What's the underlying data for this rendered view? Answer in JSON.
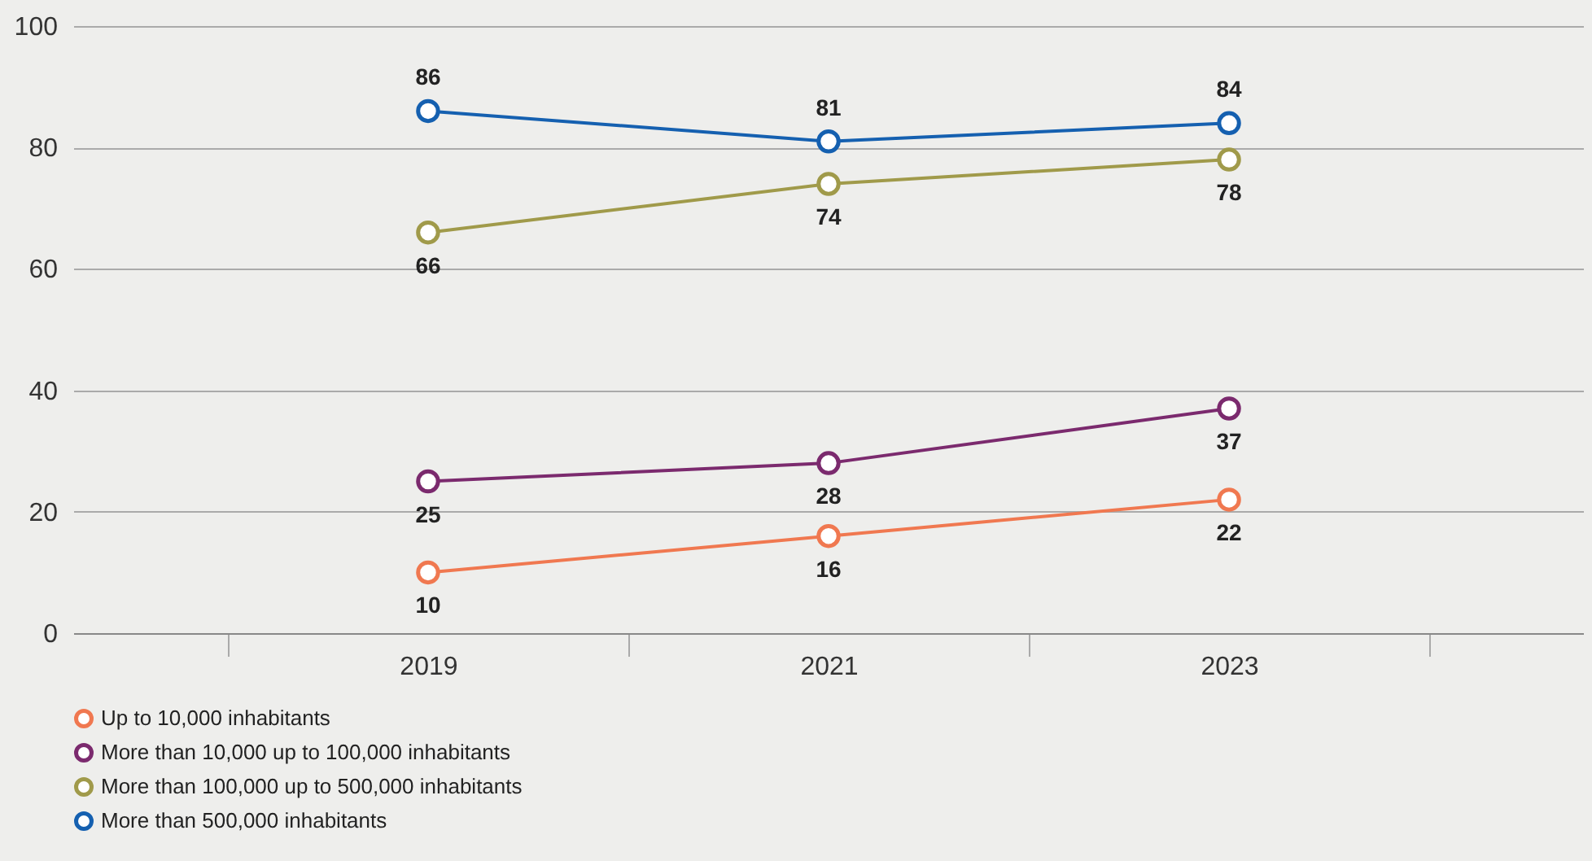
{
  "chart_data": {
    "type": "line",
    "categories": [
      "2019",
      "2021",
      "2023"
    ],
    "series": [
      {
        "name": "Up to 10,000 inhabitants",
        "color": "#f07850",
        "values": [
          10,
          16,
          22
        ]
      },
      {
        "name": "More than 10,000 up to 100,000 inhabitants",
        "color": "#7b2a6e",
        "values": [
          25,
          28,
          37
        ]
      },
      {
        "name": "More than 100,000 up to 500,000 inhabitants",
        "color": "#a09a4a",
        "values": [
          66,
          74,
          78
        ]
      },
      {
        "name": "More than 500,000 inhabitants",
        "color": "#1560b0",
        "values": [
          86,
          81,
          84
        ]
      }
    ],
    "data_labels": true,
    "ylim": [
      0,
      100
    ],
    "yticks": [
      0,
      20,
      40,
      60,
      80,
      100
    ],
    "grid": "y",
    "legend": "bottom",
    "marker": "circle",
    "line_style": "solid"
  }
}
